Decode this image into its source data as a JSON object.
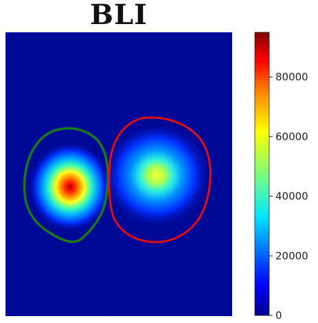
{
  "title": "BLI",
  "chart_data": {
    "type": "heatmap",
    "title": "BLI",
    "colormap": "jet",
    "background_color": "#00008b",
    "colorbar": {
      "ticks": [
        0,
        20000,
        40000,
        60000,
        80000
      ],
      "tick_labels": [
        "0",
        "20000",
        "40000",
        "60000",
        "80000"
      ],
      "vmin": 0,
      "vmax": 95000
    },
    "hotspots": [
      {
        "peak": 95000
      },
      {
        "peak": 52000
      }
    ],
    "regions_of_interest": [
      {
        "color": "#1a7a1a"
      },
      {
        "color": "#e01010"
      }
    ]
  }
}
